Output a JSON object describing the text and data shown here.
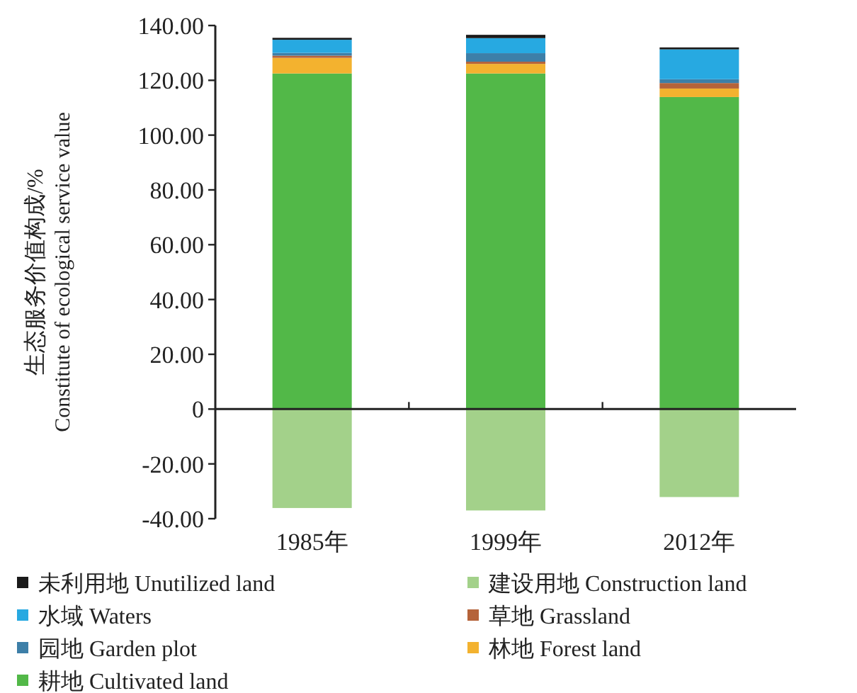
{
  "chart_data": {
    "type": "bar",
    "stacked": true,
    "ylabel": "生态服务价值构成/%\nConstitute of ecological service value",
    "categories": [
      "1985年",
      "1999年",
      "2012年"
    ],
    "ylim": [
      -40,
      140
    ],
    "yticks": [
      {
        "value": -40,
        "label": "-40.00"
      },
      {
        "value": -20,
        "label": "-20.00"
      },
      0,
      {
        "value": 20,
        "label": "20.00"
      },
      {
        "value": 40,
        "label": "40.00"
      },
      {
        "value": 60,
        "label": "60.00"
      },
      {
        "value": 80,
        "label": "80.00"
      },
      {
        "value": 100,
        "label": "100.00"
      },
      {
        "value": 120,
        "label": "120.00"
      },
      {
        "value": 140,
        "label": "140.00"
      }
    ],
    "legend": "bottom",
    "series": [
      {
        "name": "耕地 Cultivated land",
        "color": "#52b848",
        "values": [
          122.5,
          122.5,
          113.9
        ]
      },
      {
        "name": "林地 Forest land",
        "color": "#f3b22f",
        "values": [
          5.7,
          3.5,
          3.1
        ]
      },
      {
        "name": "草地 Grassland",
        "color": "#b5633a",
        "values": [
          0.8,
          0.8,
          2.0
        ]
      },
      {
        "name": "园地 Garden plot",
        "color": "#3d7fa8",
        "values": [
          1.0,
          3.1,
          1.4
        ]
      },
      {
        "name": "水域 Waters",
        "color": "#27a9e1",
        "values": [
          4.8,
          5.5,
          10.9
        ]
      },
      {
        "name": "未利用地 Unutilized land",
        "color": "#1a1a1a",
        "values": [
          0.7,
          1.2,
          0.7
        ]
      },
      {
        "name": "建设用地 Construction land",
        "color": "#a3d18a",
        "values": [
          -36.1,
          -37.0,
          -32.1
        ]
      }
    ]
  }
}
